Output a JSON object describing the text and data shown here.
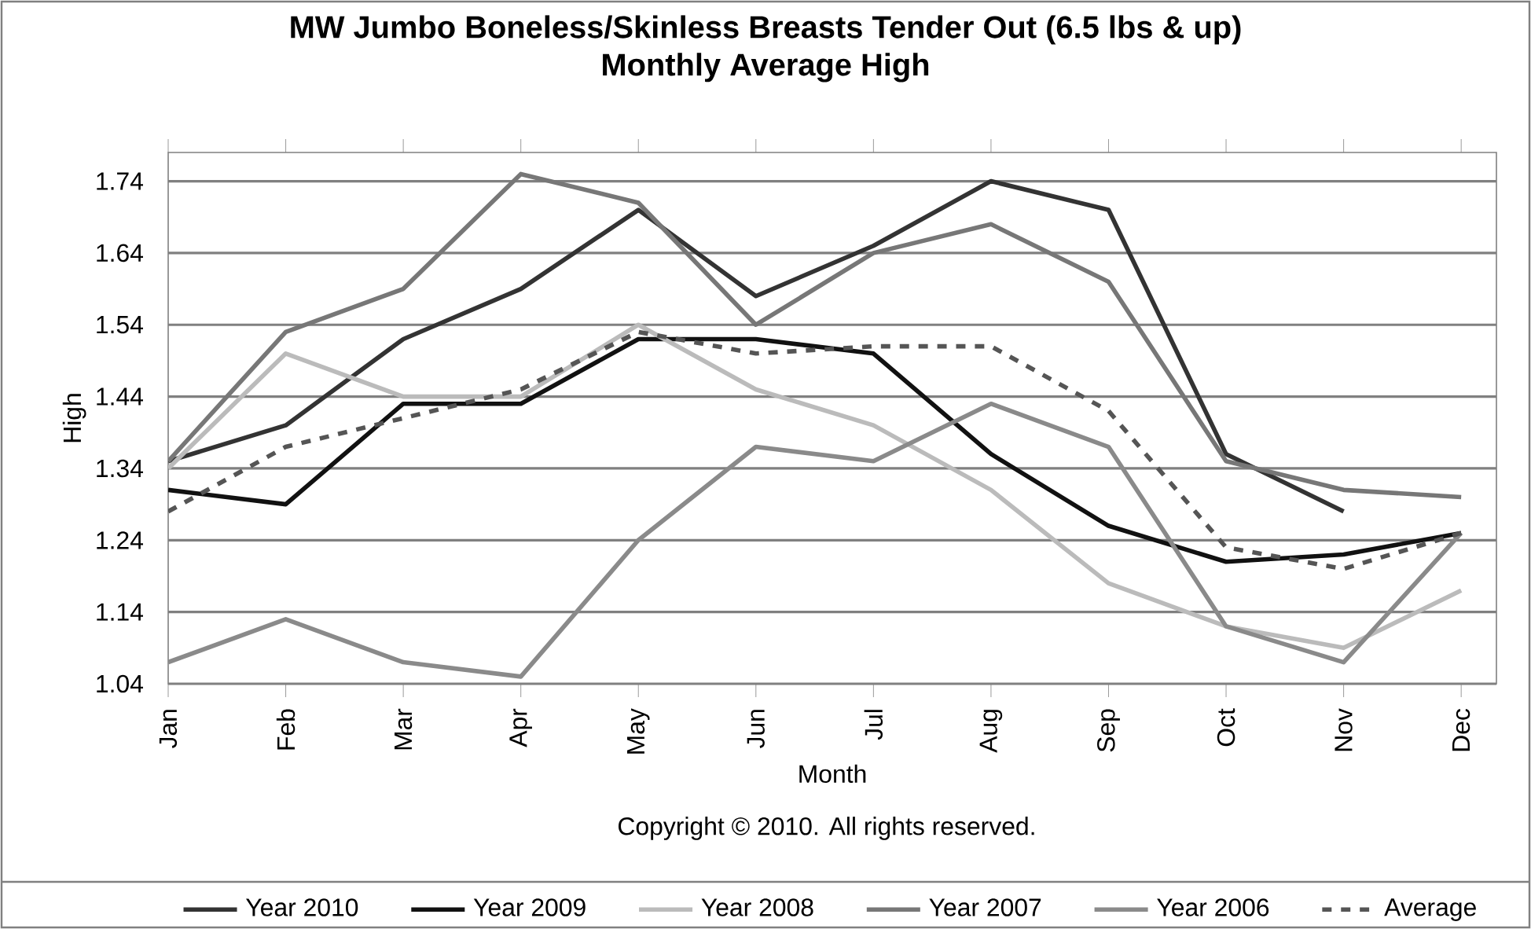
{
  "chart_data": {
    "type": "line",
    "title": "MW Jumbo Boneless/Skinless Breasts Tender Out (6.5 lbs & up)",
    "subtitle": "Monthly Average High",
    "xlabel": "Month",
    "ylabel": "High",
    "categories": [
      "Jan",
      "Feb",
      "Mar",
      "Apr",
      "May",
      "Jun",
      "Jul",
      "Aug",
      "Sep",
      "Oct",
      "Nov",
      "Dec"
    ],
    "ylim": [
      1.04,
      1.78
    ],
    "yticks": [
      1.04,
      1.14,
      1.24,
      1.34,
      1.44,
      1.54,
      1.64,
      1.74
    ],
    "grid": "y",
    "legend": "bottom",
    "marker": "none",
    "annotations": [
      "Copyright © 2010. All rights reserved."
    ],
    "series": [
      {
        "name": "Year 2010",
        "color": "#333333",
        "line_style": "solid",
        "values": [
          1.35,
          1.4,
          1.52,
          1.59,
          1.7,
          1.58,
          1.65,
          1.74,
          1.7,
          1.36,
          1.28,
          null
        ]
      },
      {
        "name": "Year 2009",
        "color": "#111111",
        "line_style": "solid",
        "values": [
          1.31,
          1.29,
          1.43,
          1.43,
          1.52,
          1.52,
          1.5,
          1.36,
          1.26,
          1.21,
          1.22,
          1.25
        ]
      },
      {
        "name": "Year 2008",
        "color": "#bbbbbb",
        "line_style": "solid",
        "values": [
          1.34,
          1.5,
          1.44,
          1.44,
          1.54,
          1.45,
          1.4,
          1.31,
          1.18,
          1.12,
          1.09,
          1.17
        ]
      },
      {
        "name": "Year 2007",
        "color": "#777777",
        "line_style": "solid",
        "values": [
          1.35,
          1.53,
          1.59,
          1.75,
          1.71,
          1.54,
          1.64,
          1.68,
          1.6,
          1.35,
          1.31,
          1.3
        ]
      },
      {
        "name": "Year 2006",
        "color": "#8a8a8a",
        "line_style": "solid",
        "values": [
          1.07,
          1.13,
          1.07,
          1.05,
          1.24,
          1.37,
          1.35,
          1.43,
          1.37,
          1.12,
          1.07,
          1.25
        ]
      },
      {
        "name": "Average",
        "color": "#555555",
        "line_style": "dashed",
        "values": [
          1.28,
          1.37,
          1.41,
          1.45,
          1.53,
          1.5,
          1.51,
          1.51,
          1.42,
          1.23,
          1.2,
          1.25
        ]
      }
    ]
  }
}
